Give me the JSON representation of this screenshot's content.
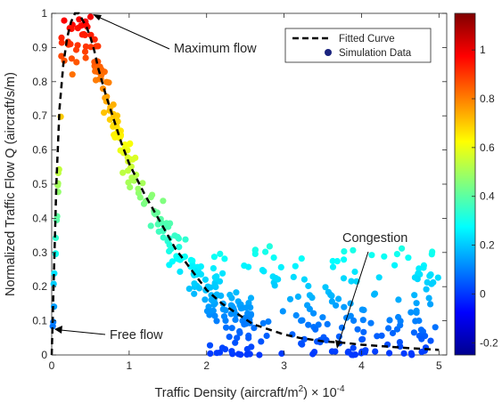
{
  "chart_data": {
    "type": "scatter",
    "title": "",
    "xlabel": {
      "text": "Traffic Density (aircraft/m",
      "sup": "2",
      "after": ") × 10",
      "exp": "-4"
    },
    "ylabel": "Normalized Traffic Flow Q (aircraft/s/m)",
    "xlim": [
      0,
      5.1
    ],
    "ylim": [
      0,
      1
    ],
    "xticks": [
      0,
      1,
      2,
      3,
      4,
      5
    ],
    "xtick_labels": [
      "0",
      "1",
      "2",
      "3",
      "4",
      "5"
    ],
    "yticks": [
      0,
      0.1,
      0.2,
      0.3,
      0.4,
      0.5,
      0.6,
      0.7,
      0.8,
      0.9,
      1
    ],
    "ytick_labels": [
      "0",
      "0.1",
      "0.2",
      "0.3",
      "0.4",
      "0.5",
      "0.6",
      "0.7",
      "0.8",
      "0.9",
      "1"
    ],
    "grid": false,
    "legend": {
      "position": "top-right",
      "entries": [
        {
          "label": "Fitted Curve",
          "style": "dashed-line",
          "color": "#000000"
        },
        {
          "label": "Simulation Data",
          "style": "marker",
          "color": "#1a237e"
        }
      ]
    },
    "colorbar": {
      "colormap": "jet",
      "range": [
        -0.25,
        1.15
      ],
      "ticks": [
        -0.2,
        0,
        0.2,
        0.4,
        0.6,
        0.8,
        1
      ],
      "tick_labels": [
        "-0.2",
        "0",
        "0.2",
        "0.4",
        "0.6",
        "0.8",
        "1"
      ]
    },
    "fitted_curve": {
      "name": "Fitted Curve",
      "x": [
        0,
        0.03,
        0.06,
        0.1,
        0.15,
        0.2,
        0.25,
        0.3,
        0.35,
        0.4,
        0.45,
        0.5,
        0.55,
        0.6,
        0.7,
        0.8,
        0.9,
        1.0,
        1.2,
        1.4,
        1.6,
        1.8,
        2.0,
        2.2,
        2.4,
        2.6,
        2.8,
        3.0,
        3.2,
        3.5,
        3.8,
        4.0,
        4.3,
        4.6,
        5.0
      ],
      "y": [
        0,
        0.25,
        0.5,
        0.72,
        0.85,
        0.93,
        0.975,
        1.0,
        1.0,
        0.98,
        0.96,
        0.93,
        0.89,
        0.84,
        0.76,
        0.69,
        0.62,
        0.56,
        0.47,
        0.39,
        0.31,
        0.25,
        0.19,
        0.15,
        0.12,
        0.09,
        0.075,
        0.06,
        0.05,
        0.04,
        0.035,
        0.03,
        0.025,
        0.02,
        0.015
      ]
    },
    "clusters": [
      {
        "name": "free-flow",
        "n": 16,
        "x": [
          0.0,
          0.12
        ],
        "yTrend": "linear-rise",
        "yMin": 0.0,
        "yMax": 0.72,
        "noise": 0.05
      },
      {
        "name": "near-peak",
        "n": 34,
        "x": [
          0.12,
          0.6
        ],
        "y": [
          0.82,
          0.99
        ]
      },
      {
        "name": "decline",
        "n": 190,
        "x": [
          0.55,
          2.6
        ],
        "yTrend": "follow-curve",
        "noise": 0.055
      },
      {
        "name": "congested",
        "n": 210,
        "x": [
          2.0,
          5.0
        ],
        "y": [
          0.0,
          0.32
        ]
      }
    ],
    "annotations": [
      {
        "text": "Maximum flow",
        "points_to": [
          0.55,
          0.985
        ]
      },
      {
        "text": "Congestion",
        "points_to": [
          3.8,
          0.015
        ]
      },
      {
        "text": "Free flow",
        "points_to": [
          0.03,
          0.07
        ]
      }
    ]
  }
}
